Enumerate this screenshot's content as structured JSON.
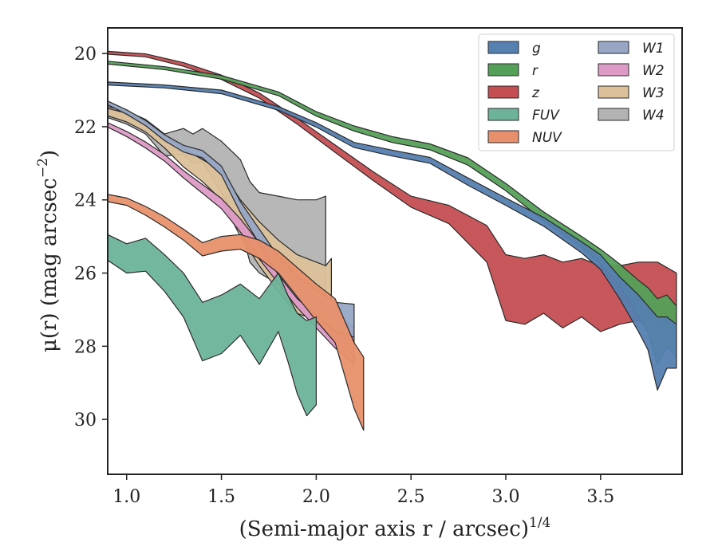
{
  "chart_data": {
    "type": "area",
    "xlabel": "(Semi-major axis r / arcsec)",
    "xlabel_sup": "1/4",
    "ylabel": "μ(r) (mag arcsec",
    "ylabel_sup": "−2",
    "ylabel_close": ")",
    "xlim": [
      0.9,
      3.93
    ],
    "ylim": [
      31.5,
      19.3
    ],
    "y_inverted": true,
    "xticks": [
      "1.0",
      "1.5",
      "2.0",
      "2.5",
      "3.0",
      "3.5"
    ],
    "xtick_values": [
      1.0,
      1.5,
      2.0,
      2.5,
      3.0,
      3.5
    ],
    "yticks": [
      "20",
      "22",
      "24",
      "26",
      "28",
      "30"
    ],
    "ytick_values": [
      20,
      22,
      24,
      26,
      28,
      30
    ],
    "legend_position": "top-right",
    "grid": false,
    "series": [
      {
        "name": "g",
        "color": "#5580b0",
        "x": [
          0.9,
          1.2,
          1.5,
          1.8,
          2.0,
          2.2,
          2.4,
          2.6,
          2.8,
          3.0,
          3.2,
          3.4,
          3.5,
          3.6,
          3.7,
          3.75,
          3.8,
          3.85,
          3.9
        ],
        "y": [
          20.82,
          20.9,
          21.05,
          21.5,
          21.95,
          22.5,
          22.72,
          22.92,
          23.5,
          24.05,
          24.6,
          25.3,
          25.7,
          26.4,
          27.1,
          27.5,
          28.2,
          27.9,
          28.0
        ],
        "err": [
          0.04,
          0.04,
          0.05,
          0.05,
          0.06,
          0.07,
          0.08,
          0.08,
          0.1,
          0.1,
          0.12,
          0.15,
          0.2,
          0.3,
          0.5,
          0.6,
          1.0,
          0.7,
          0.6
        ]
      },
      {
        "name": "r",
        "color": "#55a059",
        "x": [
          0.9,
          1.2,
          1.5,
          1.8,
          2.0,
          2.2,
          2.4,
          2.6,
          2.8,
          3.0,
          3.2,
          3.4,
          3.5,
          3.6,
          3.7,
          3.75,
          3.8,
          3.85,
          3.9
        ],
        "y": [
          20.25,
          20.4,
          20.65,
          21.1,
          21.65,
          22.05,
          22.35,
          22.55,
          22.95,
          23.65,
          24.45,
          25.15,
          25.55,
          26.05,
          26.7,
          27.0,
          27.6,
          27.3,
          27.6
        ],
        "err": [
          0.04,
          0.04,
          0.05,
          0.05,
          0.06,
          0.07,
          0.08,
          0.08,
          0.1,
          0.1,
          0.12,
          0.15,
          0.2,
          0.3,
          0.5,
          0.6,
          0.9,
          0.7,
          0.7
        ]
      },
      {
        "name": "z",
        "color": "#c44e52",
        "x": [
          0.9,
          1.1,
          1.3,
          1.5,
          1.7,
          1.9,
          2.1,
          2.3,
          2.5,
          2.7,
          2.9,
          3.0,
          3.1,
          3.2,
          3.3,
          3.4,
          3.5,
          3.6,
          3.7,
          3.8,
          3.9
        ],
        "y": [
          19.98,
          20.05,
          20.3,
          20.65,
          21.15,
          21.85,
          22.6,
          23.35,
          24.05,
          24.4,
          25.2,
          26.4,
          26.5,
          26.3,
          26.6,
          26.4,
          26.7,
          26.6,
          26.5,
          26.6,
          26.8
        ],
        "err": [
          0.04,
          0.04,
          0.05,
          0.06,
          0.07,
          0.08,
          0.1,
          0.12,
          0.15,
          0.25,
          0.5,
          0.9,
          0.9,
          0.8,
          0.9,
          0.8,
          0.9,
          0.8,
          0.8,
          0.9,
          0.8
        ]
      },
      {
        "name": "FUV",
        "color": "#6db39a",
        "x": [
          0.9,
          1.0,
          1.1,
          1.2,
          1.3,
          1.4,
          1.5,
          1.6,
          1.7,
          1.8,
          1.85,
          1.9,
          1.95,
          2.0
        ],
        "y": [
          25.3,
          25.6,
          25.5,
          26.0,
          26.6,
          27.6,
          27.4,
          27.0,
          27.6,
          26.8,
          27.5,
          28.2,
          28.6,
          28.4
        ],
        "err": [
          0.35,
          0.4,
          0.45,
          0.5,
          0.6,
          0.8,
          0.8,
          0.7,
          0.9,
          0.8,
          0.9,
          1.1,
          1.3,
          1.2
        ]
      },
      {
        "name": "NUV",
        "color": "#e8906c",
        "x": [
          0.9,
          1.0,
          1.1,
          1.2,
          1.3,
          1.4,
          1.5,
          1.6,
          1.7,
          1.8,
          1.9,
          2.0,
          2.1,
          2.2,
          2.25
        ],
        "y": [
          23.95,
          24.05,
          24.3,
          24.6,
          24.95,
          25.35,
          25.2,
          25.15,
          25.35,
          25.7,
          26.25,
          26.8,
          27.3,
          28.8,
          29.3
        ],
        "err": [
          0.1,
          0.1,
          0.12,
          0.14,
          0.15,
          0.18,
          0.2,
          0.2,
          0.25,
          0.3,
          0.4,
          0.5,
          0.6,
          0.9,
          1.0
        ]
      },
      {
        "name": "W1",
        "color": "#97a6c5",
        "x": [
          0.9,
          1.0,
          1.1,
          1.2,
          1.3,
          1.4,
          1.5,
          1.6,
          1.7,
          1.8,
          1.9,
          2.0,
          2.1,
          2.2
        ],
        "y": [
          21.35,
          21.6,
          21.9,
          22.3,
          22.6,
          22.75,
          23.2,
          24.2,
          25.0,
          25.8,
          26.4,
          26.8,
          27.2,
          27.3
        ],
        "err": [
          0.05,
          0.06,
          0.07,
          0.08,
          0.09,
          0.1,
          0.12,
          0.15,
          0.2,
          0.25,
          0.3,
          0.35,
          0.4,
          0.45
        ]
      },
      {
        "name": "W2",
        "color": "#dd9ac6",
        "x": [
          0.9,
          1.0,
          1.1,
          1.2,
          1.3,
          1.4,
          1.5,
          1.6,
          1.7,
          1.8,
          1.9,
          2.0,
          2.1,
          2.2
        ],
        "y": [
          21.95,
          22.2,
          22.5,
          22.85,
          23.3,
          23.7,
          24.1,
          24.7,
          25.4,
          26.0,
          26.6,
          27.1,
          27.6,
          28.0
        ],
        "err": [
          0.06,
          0.07,
          0.08,
          0.09,
          0.1,
          0.12,
          0.14,
          0.18,
          0.22,
          0.28,
          0.35,
          0.4,
          0.45,
          0.5
        ]
      },
      {
        "name": "W3",
        "color": "#dcc09a",
        "x": [
          0.9,
          1.0,
          1.1,
          1.2,
          1.3,
          1.4,
          1.5,
          1.6,
          1.7,
          1.8,
          1.9,
          2.0,
          2.05,
          2.08
        ],
        "y": [
          21.6,
          21.75,
          22.0,
          22.4,
          22.85,
          23.2,
          23.6,
          24.5,
          25.2,
          25.8,
          26.3,
          26.5,
          26.6,
          26.3
        ],
        "err": [
          0.1,
          0.12,
          0.14,
          0.18,
          0.25,
          0.3,
          0.4,
          0.5,
          0.6,
          0.7,
          0.8,
          0.8,
          0.8,
          0.7
        ]
      },
      {
        "name": "W4",
        "color": "#b3b3b3",
        "x": [
          0.9,
          1.0,
          1.1,
          1.2,
          1.3,
          1.35,
          1.4,
          1.5,
          1.6,
          1.65,
          1.7,
          1.8,
          1.9,
          2.0,
          2.05
        ],
        "y": [
          21.6,
          21.75,
          22.0,
          22.5,
          22.4,
          22.6,
          22.5,
          23.1,
          23.8,
          24.6,
          24.9,
          25.1,
          25.3,
          25.4,
          25.2
        ],
        "err": [
          0.15,
          0.18,
          0.2,
          0.3,
          0.35,
          0.4,
          0.45,
          0.7,
          0.9,
          1.1,
          1.1,
          1.2,
          1.3,
          1.4,
          1.3
        ]
      }
    ]
  }
}
